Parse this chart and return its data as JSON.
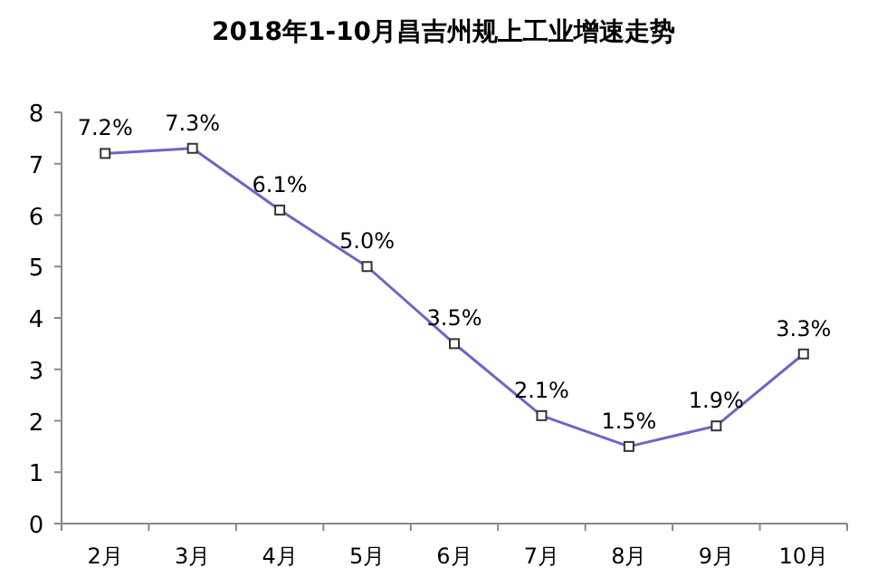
{
  "chart_data": {
    "type": "line",
    "title": "2018年1-10月昌吉州规上工业增速走势",
    "categories": [
      "2月",
      "3月",
      "4月",
      "5月",
      "6月",
      "7月",
      "8月",
      "9月",
      "10月"
    ],
    "values": [
      7.2,
      7.3,
      6.1,
      5.0,
      3.5,
      2.1,
      1.5,
      1.9,
      3.3
    ],
    "value_labels": [
      "7.2%",
      "7.3%",
      "6.1%",
      "5.0%",
      "3.5%",
      "2.1%",
      "1.5%",
      "1.9%",
      "3.3%"
    ],
    "color": "#6e64c8",
    "marker": "square",
    "line_style": "solid",
    "ylim": [
      0,
      8
    ],
    "yticks": [
      0,
      1,
      2,
      3,
      4,
      5,
      6,
      7,
      8
    ]
  }
}
